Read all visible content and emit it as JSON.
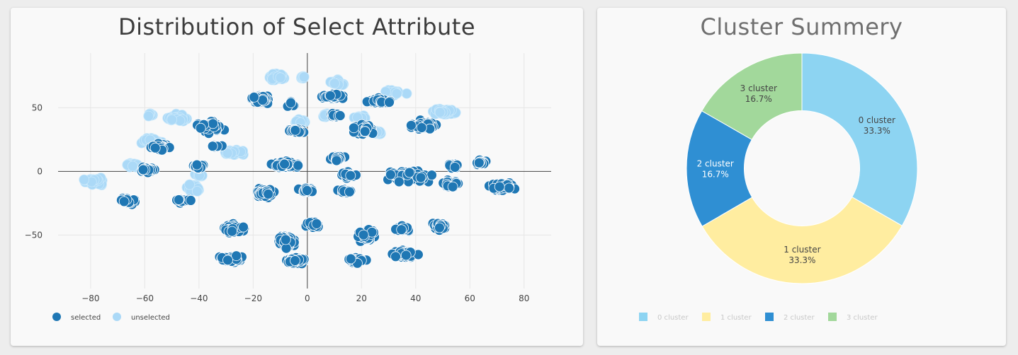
{
  "scatter_panel": {
    "title": "Distribution of Select Attribute"
  },
  "pie_panel": {
    "title": "Cluster Summery"
  },
  "chart_data": [
    {
      "type": "scatter",
      "title": "Distribution of Select Attribute",
      "xlabel": "",
      "ylabel": "",
      "xlim": [
        -92,
        90
      ],
      "ylim": [
        -92,
        93
      ],
      "x_ticks": [
        -80,
        -60,
        -40,
        -20,
        0,
        20,
        40,
        60,
        80
      ],
      "x_tick_labels": [
        "−80",
        "−60",
        "−40",
        "−20",
        "0",
        "20",
        "40",
        "60",
        "80"
      ],
      "y_ticks": [
        50,
        0,
        -50
      ],
      "y_tick_labels": [
        "50",
        "0",
        "−50"
      ],
      "grid": true,
      "legend_position": "bottom-left",
      "series": [
        {
          "name": "selected",
          "color": "#1f77b4",
          "clusters": [
            {
              "x": -17,
              "y": 57,
              "sx": 5.5,
              "sy": 4,
              "n": 70
            },
            {
              "x": -6,
              "y": 52,
              "sx": 2,
              "sy": 4,
              "n": 14
            },
            {
              "x": 10,
              "y": 59,
              "sx": 6,
              "sy": 3,
              "n": 40
            },
            {
              "x": 27,
              "y": 55,
              "sx": 6.5,
              "sy": 3.5,
              "n": 50
            },
            {
              "x": -36,
              "y": 35,
              "sx": 6,
              "sy": 6,
              "n": 70
            },
            {
              "x": -4,
              "y": 32,
              "sx": 4,
              "sy": 3,
              "n": 30
            },
            {
              "x": 10,
              "y": 44,
              "sx": 4,
              "sy": 2.5,
              "n": 16
            },
            {
              "x": 21,
              "y": 33,
              "sx": 6,
              "sy": 7,
              "n": 45
            },
            {
              "x": 43,
              "y": 36,
              "sx": 8,
              "sy": 5,
              "n": 60
            },
            {
              "x": -54,
              "y": 19,
              "sx": 5,
              "sy": 4,
              "n": 40
            },
            {
              "x": -59,
              "y": 1,
              "sx": 5,
              "sy": 3,
              "n": 40
            },
            {
              "x": -40,
              "y": 4,
              "sx": 4,
              "sy": 3,
              "n": 25
            },
            {
              "x": -34,
              "y": 20,
              "sx": 4,
              "sy": 2,
              "n": 14
            },
            {
              "x": -8,
              "y": 5,
              "sx": 7,
              "sy": 4.5,
              "n": 70
            },
            {
              "x": 11,
              "y": 10,
              "sx": 4,
              "sy": 3,
              "n": 30
            },
            {
              "x": 15,
              "y": -3,
              "sx": 5,
              "sy": 3,
              "n": 25
            },
            {
              "x": 38,
              "y": -4,
              "sx": 11,
              "sy": 7,
              "n": 95
            },
            {
              "x": 64,
              "y": 7,
              "sx": 3,
              "sy": 3,
              "n": 25
            },
            {
              "x": 72,
              "y": -12,
              "sx": 7,
              "sy": 5,
              "n": 55
            },
            {
              "x": 53,
              "y": -10,
              "sx": 5,
              "sy": 4,
              "n": 35
            },
            {
              "x": 54,
              "y": 5,
              "sx": 4,
              "sy": 3,
              "n": 20
            },
            {
              "x": -66,
              "y": -23,
              "sx": 6,
              "sy": 4,
              "n": 55
            },
            {
              "x": -46,
              "y": -23,
              "sx": 5,
              "sy": 2.5,
              "n": 28
            },
            {
              "x": -15,
              "y": -17,
              "sx": 5,
              "sy": 5,
              "n": 45
            },
            {
              "x": 0,
              "y": -15,
              "sx": 4,
              "sy": 3,
              "n": 35
            },
            {
              "x": 14,
              "y": -16,
              "sx": 4,
              "sy": 3,
              "n": 30
            },
            {
              "x": -27,
              "y": -45,
              "sx": 6,
              "sy": 5,
              "n": 70
            },
            {
              "x": -8,
              "y": -55,
              "sx": 5,
              "sy": 8,
              "n": 50
            },
            {
              "x": 2,
              "y": -42,
              "sx": 4,
              "sy": 4,
              "n": 30
            },
            {
              "x": 22,
              "y": -50,
              "sx": 5,
              "sy": 8,
              "n": 60
            },
            {
              "x": 35,
              "y": -45,
              "sx": 4,
              "sy": 4,
              "n": 30
            },
            {
              "x": 49,
              "y": -43,
              "sx": 4,
              "sy": 5,
              "n": 35
            },
            {
              "x": -28,
              "y": -69,
              "sx": 6,
              "sy": 4,
              "n": 60
            },
            {
              "x": -4,
              "y": -70,
              "sx": 5,
              "sy": 4,
              "n": 50
            },
            {
              "x": 18,
              "y": -70,
              "sx": 5,
              "sy": 3.5,
              "n": 40
            },
            {
              "x": 36,
              "y": -65,
              "sx": 7,
              "sy": 4,
              "n": 55
            }
          ]
        },
        {
          "name": "unselected",
          "color": "#abd9f7",
          "clusters": [
            {
              "x": -11,
              "y": 74,
              "sx": 5,
              "sy": 4,
              "n": 40
            },
            {
              "x": -2,
              "y": 74,
              "sx": 2,
              "sy": 2,
              "n": 12
            },
            {
              "x": 11,
              "y": 70,
              "sx": 4,
              "sy": 3,
              "n": 22
            },
            {
              "x": 32,
              "y": 62,
              "sx": 6,
              "sy": 3,
              "n": 30
            },
            {
              "x": -48,
              "y": 42,
              "sx": 6,
              "sy": 4,
              "n": 45
            },
            {
              "x": -58,
              "y": 44,
              "sx": 2,
              "sy": 2,
              "n": 8
            },
            {
              "x": -3,
              "y": 39,
              "sx": 4,
              "sy": 2.5,
              "n": 24
            },
            {
              "x": 7,
              "y": 44,
              "sx": 3,
              "sy": 2.5,
              "n": 14
            },
            {
              "x": 19,
              "y": 42,
              "sx": 4,
              "sy": 2.5,
              "n": 18
            },
            {
              "x": 26,
              "y": 30,
              "sx": 3,
              "sy": 3,
              "n": 14
            },
            {
              "x": 50,
              "y": 47,
              "sx": 8,
              "sy": 4,
              "n": 55
            },
            {
              "x": -58,
              "y": 24,
              "sx": 6,
              "sy": 3,
              "n": 30
            },
            {
              "x": -27,
              "y": 15,
              "sx": 6,
              "sy": 3,
              "n": 30
            },
            {
              "x": -64,
              "y": 5,
              "sx": 4,
              "sy": 3,
              "n": 24
            },
            {
              "x": -79,
              "y": -8,
              "sx": 7,
              "sy": 4,
              "n": 45
            },
            {
              "x": -42,
              "y": -13,
              "sx": 5,
              "sy": 4,
              "n": 35
            },
            {
              "x": -40,
              "y": -3,
              "sx": 3,
              "sy": 2,
              "n": 10
            }
          ]
        }
      ]
    },
    {
      "type": "pie",
      "title": "Cluster Summery",
      "hole": 0.5,
      "legend_position": "bottom",
      "categories": [
        "0 cluster",
        "1 cluster",
        "2 cluster",
        "3 cluster"
      ],
      "values": [
        33.3,
        33.3,
        16.7,
        16.7
      ],
      "labels": [
        "0 cluster",
        "1 cluster",
        "2 cluster",
        "3 cluster"
      ],
      "percent_labels": [
        "33.3%",
        "33.3%",
        "16.7%",
        "16.7%"
      ],
      "colors": [
        "#8dd4f2",
        "#ffeda0",
        "#2f8fd3",
        "#a2d89b"
      ]
    }
  ]
}
